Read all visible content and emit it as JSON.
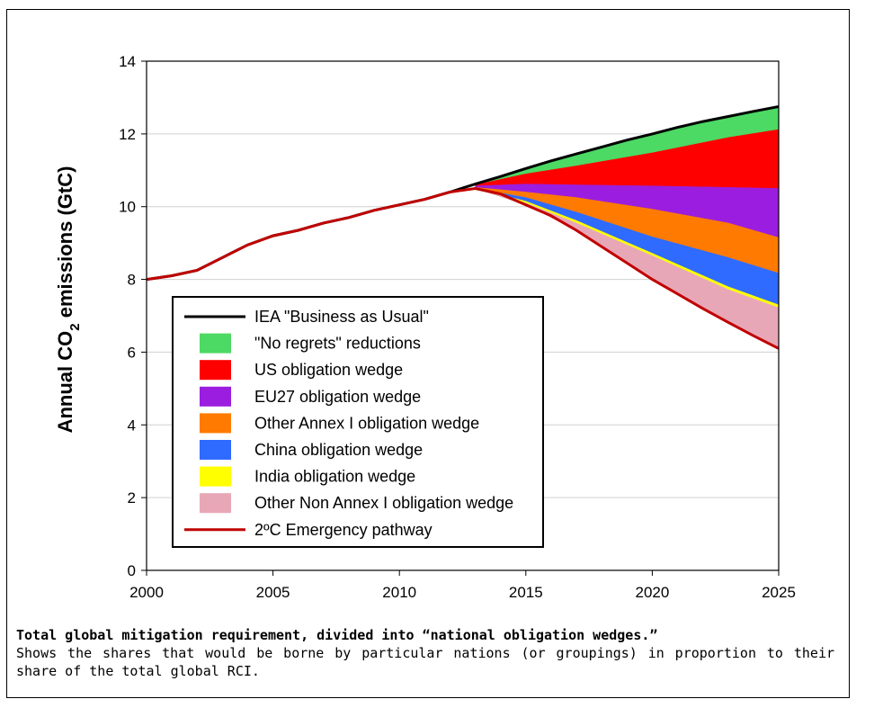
{
  "chart_data": {
    "type": "area",
    "title": "",
    "xlabel": "",
    "ylabel": "Annual CO",
    "ylabel_sub": "2",
    "ylabel_tail": " emissions (GtC)",
    "xlim": [
      2000,
      2025
    ],
    "ylim": [
      0,
      14
    ],
    "x_ticks": [
      2000,
      2005,
      2010,
      2015,
      2020,
      2025
    ],
    "y_ticks": [
      0,
      2,
      4,
      6,
      8,
      10,
      12,
      14
    ],
    "grid": "horizontal",
    "legend_position": "lower-center",
    "bau_line": {
      "name": "IEA \"Business as Usual\"",
      "color": "#000000",
      "x": [
        2000,
        2001,
        2002,
        2003,
        2004,
        2005,
        2006,
        2007,
        2008,
        2009,
        2010,
        2011,
        2012,
        2013,
        2014,
        2015,
        2016,
        2017,
        2018,
        2019,
        2020,
        2021,
        2022,
        2023,
        2024,
        2025
      ],
      "y": [
        8.0,
        8.1,
        8.25,
        8.6,
        8.95,
        9.2,
        9.35,
        9.55,
        9.7,
        9.9,
        10.05,
        10.2,
        10.4,
        10.62,
        10.83,
        11.05,
        11.26,
        11.45,
        11.64,
        11.83,
        12.0,
        12.18,
        12.34,
        12.48,
        12.62,
        12.75
      ]
    },
    "wedge_x": [
      2013,
      2015,
      2017,
      2020,
      2023,
      2025
    ],
    "boundaries": [
      [
        10.62,
        11.05,
        11.45,
        12.0,
        12.48,
        12.75
      ],
      [
        10.6,
        10.9,
        11.12,
        11.48,
        11.9,
        12.12
      ],
      [
        10.57,
        10.62,
        10.6,
        10.57,
        10.53,
        10.5
      ],
      [
        10.53,
        10.4,
        10.25,
        9.93,
        9.55,
        9.15
      ],
      [
        10.5,
        10.25,
        9.85,
        9.17,
        8.6,
        8.17
      ],
      [
        10.5,
        10.15,
        9.62,
        8.72,
        7.8,
        7.3
      ],
      [
        10.5,
        10.1,
        9.55,
        8.65,
        7.72,
        7.22
      ],
      [
        10.5,
        10.05,
        9.35,
        8.0,
        6.82,
        6.1
      ]
    ],
    "series": [
      {
        "name": "\"No regrets\" reductions",
        "color": "#4cd964"
      },
      {
        "name": "US obligation wedge",
        "color": "#ff0000"
      },
      {
        "name": "EU27 obligation wedge",
        "color": "#9b1ddf"
      },
      {
        "name": "Other Annex I obligation wedge",
        "color": "#ff7a00"
      },
      {
        "name": "China obligation wedge",
        "color": "#2f6bff"
      },
      {
        "name": "India obligation wedge",
        "color": "#ffff00"
      },
      {
        "name": "Other Non Annex I obligation wedge",
        "color": "#e8a7b7"
      }
    ],
    "emergency_line": {
      "name": "2ºC Emergency pathway",
      "color": "#c00000",
      "x": [
        2000,
        2001,
        2002,
        2003,
        2004,
        2005,
        2006,
        2007,
        2008,
        2009,
        2010,
        2011,
        2012,
        2013,
        2014,
        2015,
        2016,
        2017,
        2018,
        2019,
        2020,
        2021,
        2022,
        2023,
        2024,
        2025
      ],
      "y": [
        8.0,
        8.1,
        8.25,
        8.6,
        8.95,
        9.2,
        9.35,
        9.55,
        9.7,
        9.9,
        10.05,
        10.2,
        10.4,
        10.5,
        10.35,
        10.05,
        9.75,
        9.35,
        8.9,
        8.45,
        8.0,
        7.6,
        7.2,
        6.82,
        6.45,
        6.1
      ]
    }
  },
  "caption": {
    "title": "Total global mitigation requirement, divided into “national obligation wedges.”",
    "body": "Shows the shares that would be borne by particular nations (or groupings) in proportion to their share of the total global RCI."
  }
}
